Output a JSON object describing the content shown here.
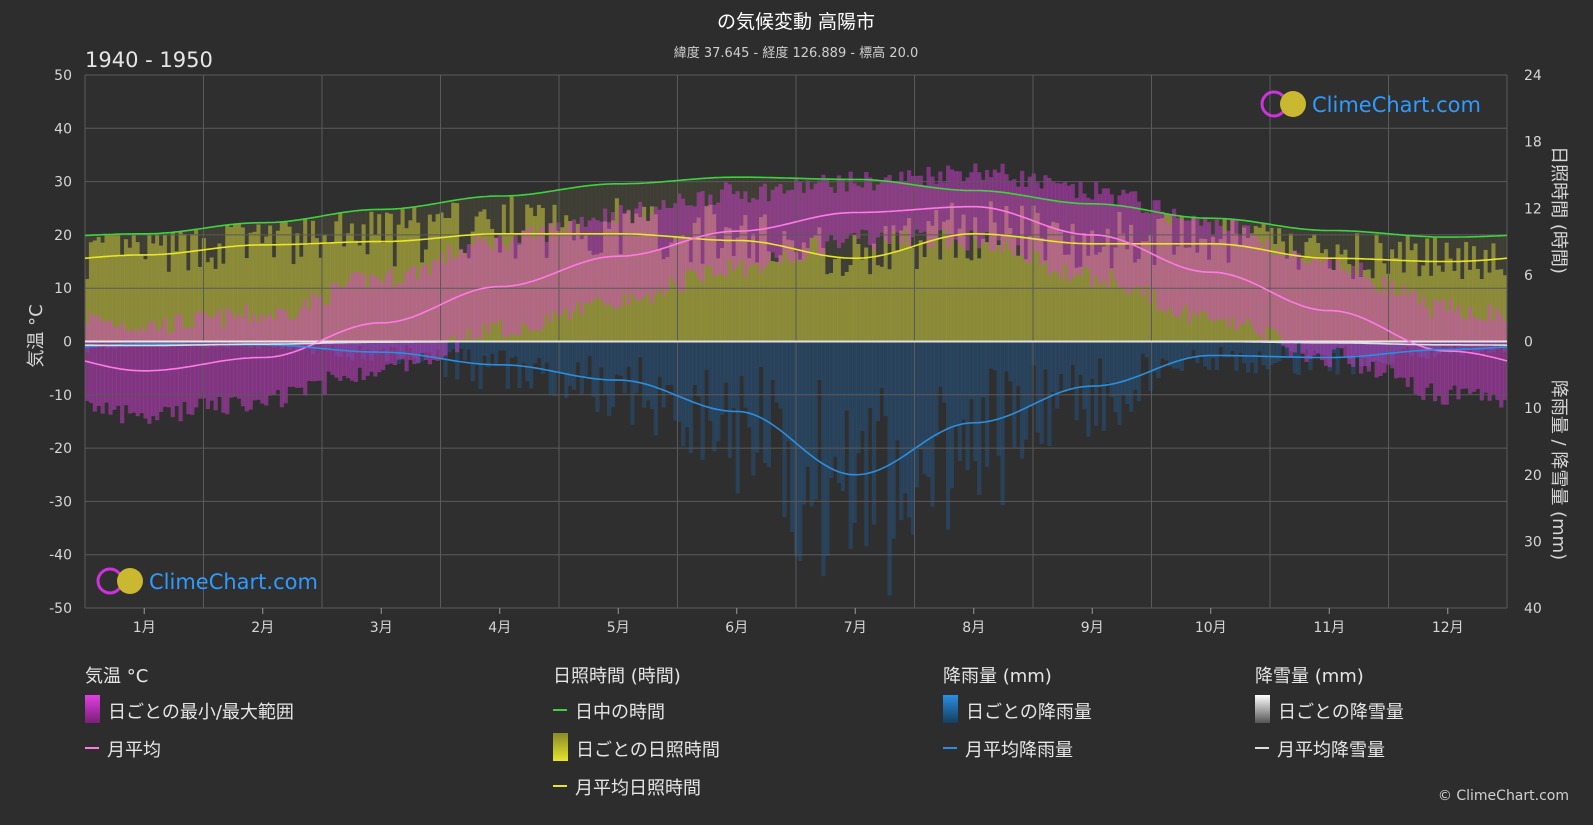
{
  "header": {
    "title": "の気候変動 高陽市",
    "subtitle": "緯度 37.645 - 経度 126.889 - 標高 20.0",
    "period": "1940 - 1950"
  },
  "watermark": "ClimeChart.com",
  "copyright": "© ClimeChart.com",
  "chart_data": {
    "type": "line",
    "categories": [
      "1月",
      "2月",
      "3月",
      "4月",
      "5月",
      "6月",
      "7月",
      "8月",
      "9月",
      "10月",
      "11月",
      "12月"
    ],
    "y_left": {
      "label": "気温 °C",
      "range": [
        -50,
        50
      ],
      "ticks": [
        50,
        40,
        30,
        20,
        10,
        0,
        -10,
        -20,
        -30,
        -40,
        -50
      ]
    },
    "y_right_top": {
      "label": "日照時間 (時間)",
      "range": [
        0,
        24
      ],
      "ticks": [
        24,
        18,
        12,
        6,
        0
      ]
    },
    "y_right_bottom": {
      "label": "降雨量 / 降雪量 (mm)",
      "range": [
        0,
        40
      ],
      "ticks": [
        0,
        10,
        20,
        30,
        40
      ]
    },
    "grid": true,
    "series": [
      {
        "name": "日中の時間",
        "axis": "sunshine",
        "color": "#3fd23f",
        "values": [
          9.7,
          10.7,
          11.9,
          13.1,
          14.2,
          14.8,
          14.6,
          13.6,
          12.4,
          11.1,
          10.0,
          9.4
        ]
      },
      {
        "name": "月平均日照時間",
        "axis": "sunshine",
        "color": "#e6e62a",
        "values": [
          7.8,
          8.7,
          9.0,
          9.7,
          9.7,
          9.1,
          7.5,
          9.7,
          8.8,
          8.8,
          7.5,
          7.2
        ]
      },
      {
        "name": "月平均",
        "axis": "temperature",
        "color": "#ff7ae6",
        "values": [
          -5.5,
          -3.0,
          3.5,
          10.3,
          16.0,
          20.7,
          24.2,
          25.3,
          20.0,
          13.0,
          5.8,
          -1.8
        ]
      },
      {
        "name": "月平均降雨量",
        "axis": "precipitation",
        "color": "#2b8fe0",
        "values": [
          0.4,
          0.5,
          1.6,
          3.5,
          5.8,
          10.5,
          20.0,
          12.2,
          6.7,
          2.1,
          2.4,
          1.2
        ]
      },
      {
        "name": "月平均降雪量",
        "axis": "precipitation",
        "color": "#dddddd",
        "values": [
          0.6,
          0.4,
          0.1,
          0,
          0,
          0,
          0,
          0,
          0,
          0,
          0.2,
          0.5
        ]
      }
    ],
    "daily_temperature_range": {
      "name": "日ごとの最小/最大範囲",
      "color": "#e040e0",
      "min": [
        -12,
        -9,
        -3,
        4,
        10,
        16,
        21,
        21,
        14,
        6,
        -1,
        -8
      ],
      "max": [
        1,
        3,
        10,
        17,
        22,
        26,
        28,
        30,
        26,
        20,
        12,
        4
      ]
    },
    "daily_sunshine": {
      "name": "日ごとの日照時間",
      "color": "#c8c83a"
    },
    "daily_rain": {
      "name": "日ごとの降雨量",
      "color": "#1f78c8"
    },
    "daily_snow": {
      "name": "日ごとの降雪量",
      "color": "#bbbbbb"
    }
  },
  "legend": {
    "temperature": {
      "title": "気温 °C",
      "range": "日ごとの最小/最大範囲",
      "mean": "月平均"
    },
    "sunshine": {
      "title": "日照時間 (時間)",
      "daylight": "日中の時間",
      "daily": "日ごとの日照時間",
      "mean": "月平均日照時間"
    },
    "rain": {
      "title": "降雨量 (mm)",
      "daily": "日ごとの降雨量",
      "mean": "月平均降雨量"
    },
    "snow": {
      "title": "降雪量 (mm)",
      "daily": "日ごとの降雪量",
      "mean": "月平均降雪量"
    }
  },
  "colors": {
    "background": "#2d2d2d",
    "grid": "#5a5a5a",
    "daylight": "#3fd23f",
    "sunshine": "#e6e62a",
    "temp_mean": "#ff7ae6",
    "temp_range": "#e040e0",
    "rain": "#2b8fe0",
    "snow": "#dddddd"
  }
}
